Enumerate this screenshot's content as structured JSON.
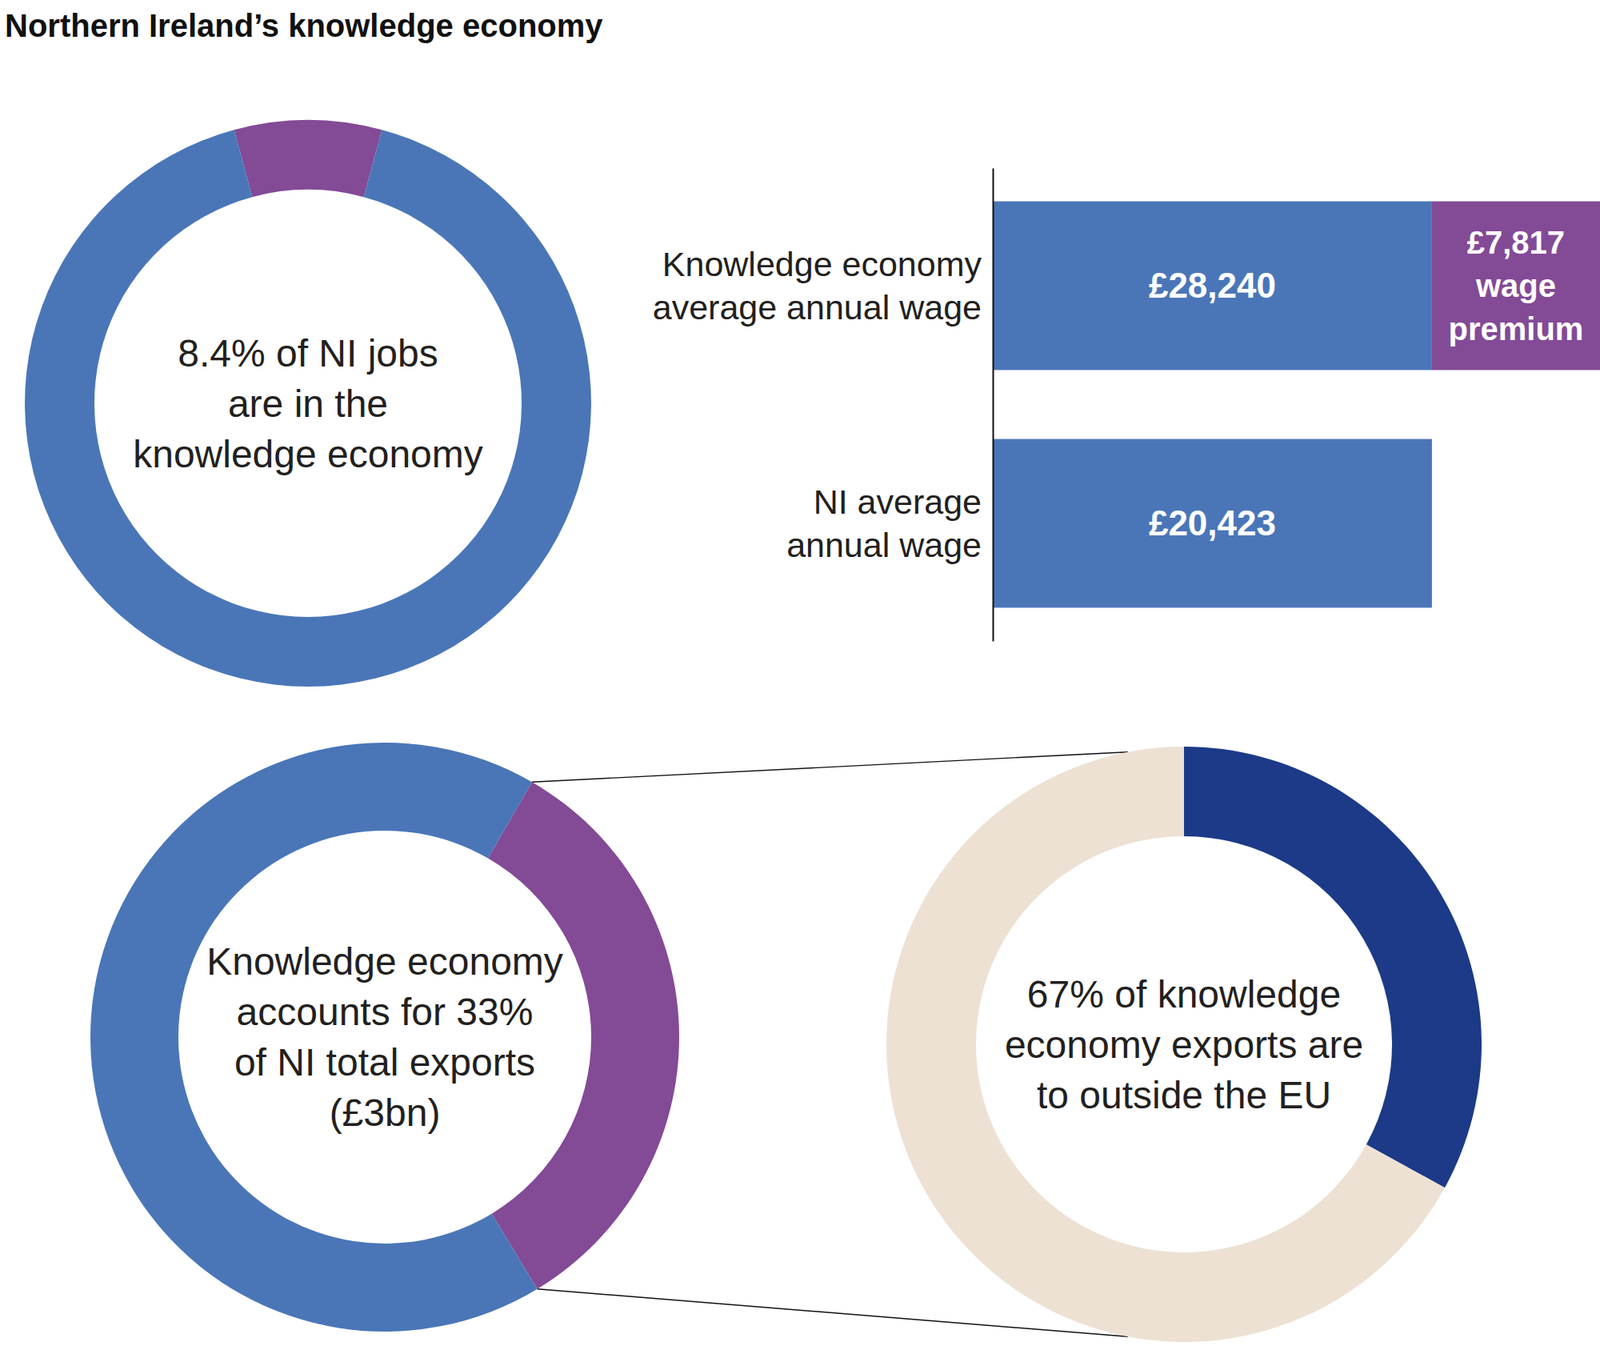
{
  "title": "Northern Ireland’s knowledge economy",
  "chart_data": [
    {
      "type": "donut",
      "values": [
        8.4,
        91.6
      ],
      "colors": [
        "#834a96",
        "#4a76b8"
      ],
      "center_text": "8.4% of NI jobs\nare in the\nknowledge economy"
    },
    {
      "type": "bar",
      "orientation": "horizontal",
      "stacked": true,
      "data_labels": true,
      "tick_labels": "y",
      "categories": [
        "Knowledge economy\naverage annual wage",
        "NI average\nannual wage"
      ],
      "series": [
        {
          "color": "#4a76b8",
          "values": [
            20423,
            20423
          ]
        },
        {
          "name": "wage premium",
          "color": "#834a96",
          "values": [
            7817,
            null
          ],
          "value_labels": [
            "£7,817",
            null
          ]
        }
      ],
      "total_labels": [
        "£28,240",
        "£20,423"
      ],
      "xlim": [
        0,
        28240
      ]
    },
    {
      "type": "donut",
      "values": [
        33,
        67
      ],
      "colors": [
        "#834a96",
        "#4a76b8"
      ],
      "center_text": "Knowledge economy\naccounts for 33%\nof NI total exports\n(£3bn)"
    },
    {
      "type": "donut",
      "values": [
        33,
        67
      ],
      "colors": [
        "#1c3a87",
        "#ece1d3"
      ],
      "center_text": "67% of knowledge\neconomy exports are\nto outside the EU"
    }
  ]
}
